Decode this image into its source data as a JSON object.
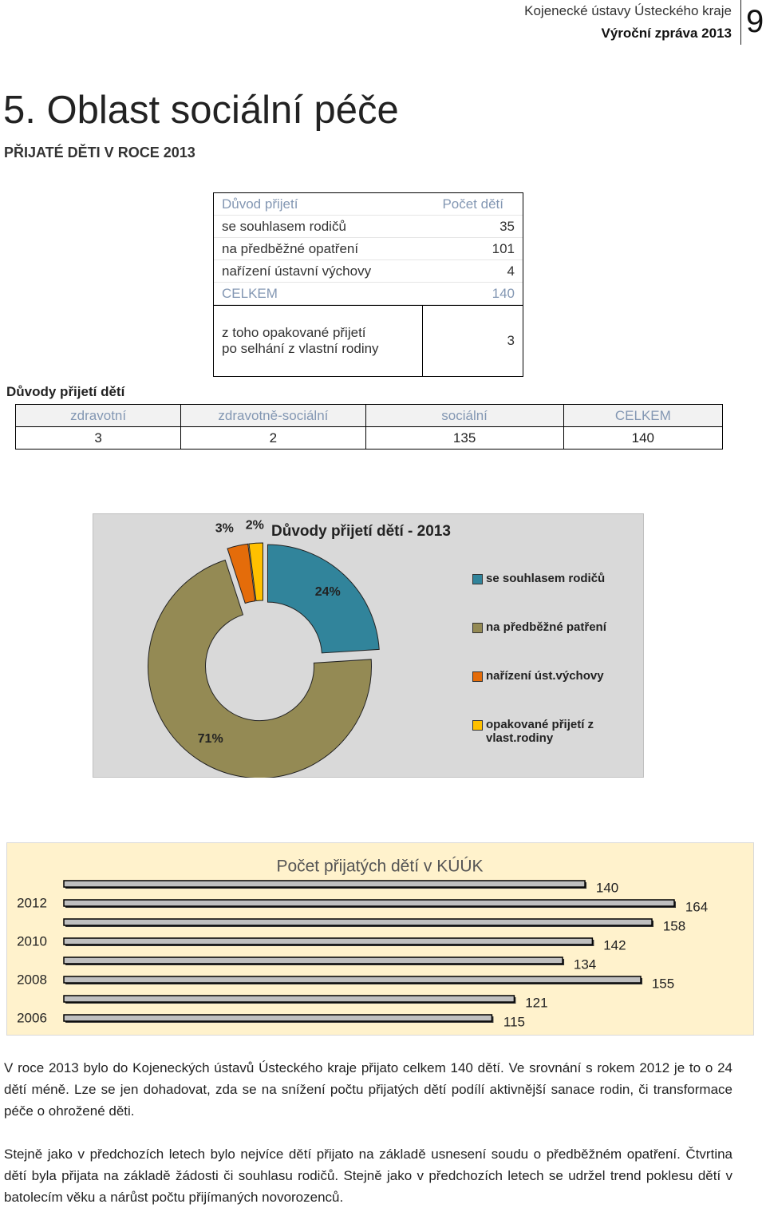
{
  "header": {
    "organization": "Kojenecké ústavy Ústeckého kraje",
    "report": "Výroční zpráva 2013",
    "page_number": 9
  },
  "title": "5. Oblast sociální péče",
  "subtitle": "PŘIJATÉ DĚTI V ROCE 2013",
  "admissions_table": {
    "columns": [
      "Důvod přijetí",
      "Počet dětí"
    ],
    "rows": [
      [
        "se souhlasem rodičů",
        35
      ],
      [
        "na předběžné opatření",
        101
      ],
      [
        "nařízení ústavní výchovy",
        4
      ]
    ],
    "total": [
      "CELKEM",
      140
    ],
    "note": {
      "lines": [
        "z toho opakované přijetí",
        "po selhání z vlastní rodiny"
      ],
      "value": 3
    }
  },
  "reasons_table": {
    "caption": "Důvody přijetí dětí",
    "columns": [
      "zdravotní",
      "zdravotně-sociální",
      "sociální",
      "CELKEM"
    ],
    "values": [
      3,
      2,
      135,
      140
    ]
  },
  "chart_data": [
    {
      "type": "pie",
      "title": "Důvody přijetí dětí - 2013",
      "categories": [
        "se souhlasem rodičů",
        "na předběžné patření",
        "nařízení úst.výchovy",
        "opakované přijetí z vlast.rodiny"
      ],
      "values": [
        24,
        71,
        3,
        2
      ],
      "value_labels": [
        "24%",
        "71%",
        "3%",
        "2%"
      ],
      "colors": [
        "#31849b",
        "#948a54",
        "#e46c0a",
        "#ffc000"
      ],
      "legend": "right"
    },
    {
      "type": "bar",
      "orientation": "horizontal",
      "title": "Počet přijatých dětí v KÚÚK",
      "categories": [
        null,
        "2012",
        null,
        "2010",
        null,
        "2008",
        null,
        "2006"
      ],
      "values": [
        140,
        164,
        158,
        142,
        134,
        155,
        121,
        115
      ],
      "color": "#bfbfbf"
    }
  ],
  "paragraphs": [
    "V roce 2013 bylo do Kojeneckých ústavů Ústeckého kraje přijato celkem 140 dětí. Ve srovnání s rokem 2012 je to o 24 dětí méně. Lze se jen dohadovat, zda se na snížení počtu přijatých dětí podílí aktivnější sanace rodin, či transformace péče o ohrožené děti.",
    "Stejně jako v předchozích letech bylo nejvíce dětí přijato na základě usnesení soudu o předběžném opatření. Čtvrtina dětí byla přijata na základě žádosti či souhlasu rodičů. Stejně jako v předchozích letech se udržel trend poklesu dětí v batolecím věku a nárůst počtu přijímaných novorozenců."
  ]
}
